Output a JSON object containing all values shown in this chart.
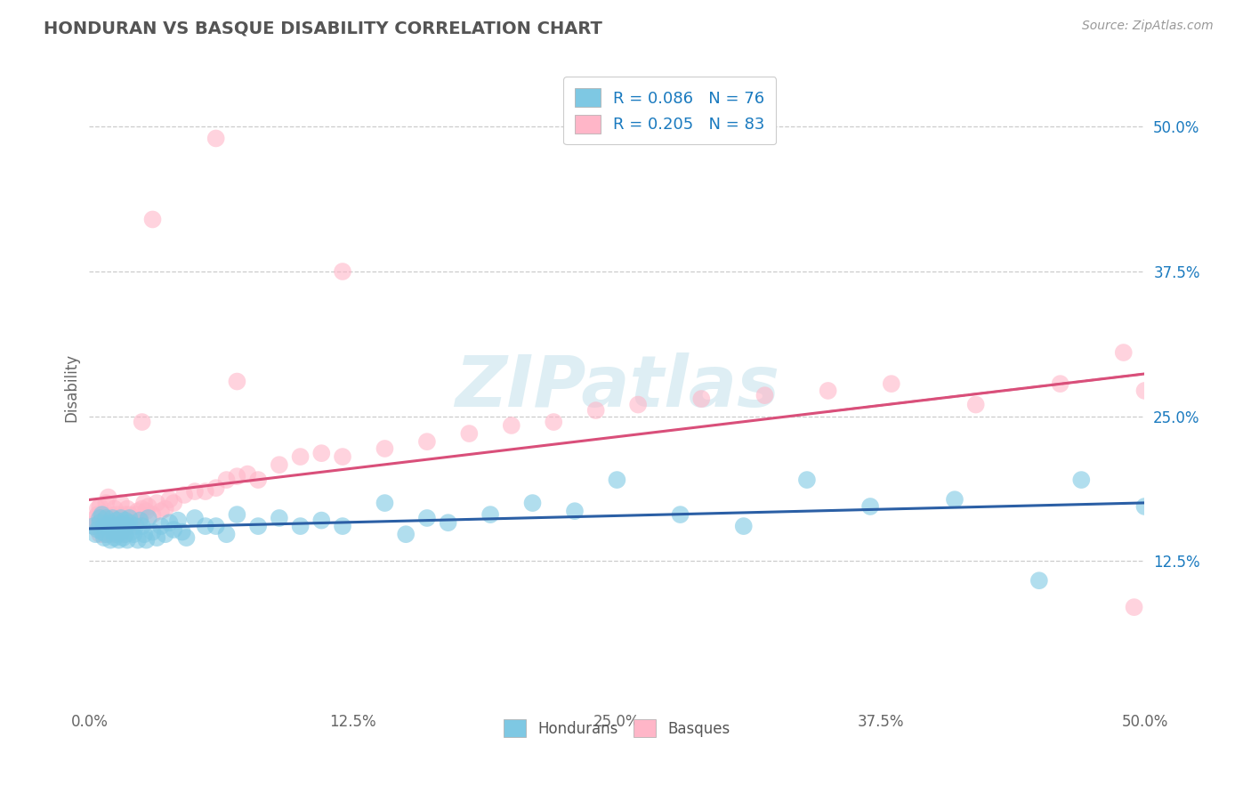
{
  "title": "HONDURAN VS BASQUE DISABILITY CORRELATION CHART",
  "source_text": "Source: ZipAtlas.com",
  "ylabel": "Disability",
  "xlim": [
    0.0,
    0.5
  ],
  "ylim": [
    0.0,
    0.55
  ],
  "xtick_labels": [
    "0.0%",
    "12.5%",
    "25.0%",
    "37.5%",
    "50.0%"
  ],
  "xtick_vals": [
    0.0,
    0.125,
    0.25,
    0.375,
    0.5
  ],
  "ytick_labels": [
    "12.5%",
    "25.0%",
    "37.5%",
    "50.0%"
  ],
  "ytick_vals": [
    0.125,
    0.25,
    0.375,
    0.5
  ],
  "blue_color": "#7ec8e3",
  "pink_color": "#ffb6c8",
  "blue_line_color": "#2b5fa5",
  "pink_line_color": "#d94f7a",
  "r_blue": 0.086,
  "n_blue": 76,
  "r_pink": 0.205,
  "n_pink": 83,
  "legend_text_color": "#1a7abf",
  "title_color": "#555555",
  "background_color": "#ffffff",
  "watermark_text": "ZIPatlas",
  "grid_color": "#cccccc",
  "blue_points_x": [
    0.002,
    0.003,
    0.004,
    0.005,
    0.005,
    0.006,
    0.006,
    0.007,
    0.007,
    0.008,
    0.008,
    0.009,
    0.01,
    0.01,
    0.011,
    0.011,
    0.012,
    0.012,
    0.013,
    0.013,
    0.014,
    0.014,
    0.015,
    0.015,
    0.016,
    0.016,
    0.017,
    0.017,
    0.018,
    0.018,
    0.019,
    0.019,
    0.02,
    0.021,
    0.022,
    0.023,
    0.024,
    0.025,
    0.026,
    0.027,
    0.028,
    0.03,
    0.032,
    0.034,
    0.036,
    0.038,
    0.04,
    0.042,
    0.044,
    0.046,
    0.05,
    0.055,
    0.06,
    0.065,
    0.07,
    0.08,
    0.09,
    0.1,
    0.11,
    0.12,
    0.14,
    0.15,
    0.16,
    0.17,
    0.19,
    0.21,
    0.23,
    0.25,
    0.28,
    0.31,
    0.34,
    0.37,
    0.41,
    0.45,
    0.47,
    0.5
  ],
  "blue_points_y": [
    0.155,
    0.148,
    0.152,
    0.158,
    0.162,
    0.15,
    0.165,
    0.145,
    0.155,
    0.148,
    0.162,
    0.155,
    0.143,
    0.158,
    0.15,
    0.162,
    0.145,
    0.155,
    0.148,
    0.16,
    0.143,
    0.155,
    0.15,
    0.162,
    0.145,
    0.158,
    0.148,
    0.16,
    0.155,
    0.143,
    0.158,
    0.162,
    0.15,
    0.148,
    0.155,
    0.143,
    0.16,
    0.155,
    0.148,
    0.143,
    0.162,
    0.15,
    0.145,
    0.155,
    0.148,
    0.158,
    0.152,
    0.16,
    0.15,
    0.145,
    0.162,
    0.155,
    0.155,
    0.148,
    0.165,
    0.155,
    0.162,
    0.155,
    0.16,
    0.155,
    0.175,
    0.148,
    0.162,
    0.158,
    0.165,
    0.175,
    0.168,
    0.195,
    0.165,
    0.155,
    0.195,
    0.172,
    0.178,
    0.108,
    0.195,
    0.172
  ],
  "pink_points_x": [
    0.002,
    0.003,
    0.003,
    0.004,
    0.004,
    0.005,
    0.005,
    0.006,
    0.006,
    0.007,
    0.007,
    0.008,
    0.008,
    0.009,
    0.009,
    0.01,
    0.01,
    0.011,
    0.011,
    0.012,
    0.012,
    0.013,
    0.013,
    0.014,
    0.014,
    0.015,
    0.015,
    0.016,
    0.016,
    0.017,
    0.017,
    0.018,
    0.018,
    0.019,
    0.019,
    0.02,
    0.021,
    0.022,
    0.023,
    0.024,
    0.025,
    0.026,
    0.027,
    0.028,
    0.03,
    0.032,
    0.034,
    0.036,
    0.038,
    0.04,
    0.045,
    0.05,
    0.055,
    0.06,
    0.065,
    0.07,
    0.075,
    0.08,
    0.09,
    0.1,
    0.11,
    0.12,
    0.14,
    0.16,
    0.18,
    0.2,
    0.22,
    0.24,
    0.26,
    0.29,
    0.32,
    0.35,
    0.38,
    0.42,
    0.46,
    0.49,
    0.495,
    0.5,
    0.06,
    0.03,
    0.07,
    0.12,
    0.025
  ],
  "pink_points_y": [
    0.155,
    0.158,
    0.162,
    0.165,
    0.17,
    0.148,
    0.172,
    0.158,
    0.155,
    0.165,
    0.148,
    0.162,
    0.175,
    0.15,
    0.18,
    0.148,
    0.165,
    0.155,
    0.162,
    0.148,
    0.17,
    0.158,
    0.165,
    0.155,
    0.162,
    0.148,
    0.175,
    0.16,
    0.155,
    0.165,
    0.148,
    0.162,
    0.17,
    0.155,
    0.165,
    0.158,
    0.162,
    0.165,
    0.168,
    0.162,
    0.17,
    0.175,
    0.168,
    0.172,
    0.165,
    0.175,
    0.168,
    0.17,
    0.178,
    0.175,
    0.182,
    0.185,
    0.185,
    0.188,
    0.195,
    0.198,
    0.2,
    0.195,
    0.208,
    0.215,
    0.218,
    0.215,
    0.222,
    0.228,
    0.235,
    0.242,
    0.245,
    0.255,
    0.26,
    0.265,
    0.268,
    0.272,
    0.278,
    0.26,
    0.278,
    0.305,
    0.085,
    0.272,
    0.49,
    0.42,
    0.28,
    0.375,
    0.245
  ]
}
